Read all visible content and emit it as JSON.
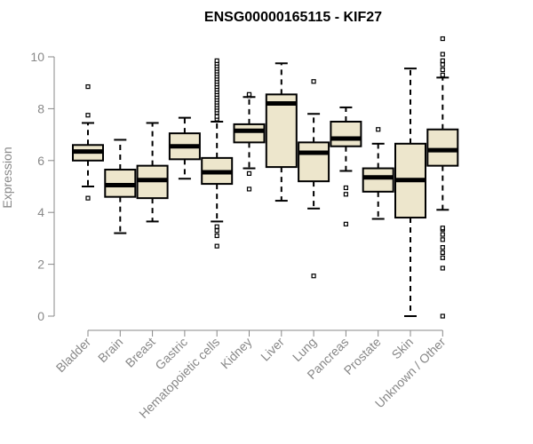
{
  "chart_data": {
    "type": "box",
    "title": "ENSG00000165115 - KIF27",
    "ylabel": "Expression",
    "xlabel": "",
    "ylim": [
      0,
      10
    ],
    "yticks": [
      0,
      2,
      4,
      6,
      8,
      10
    ],
    "colors": {
      "box_fill": "#ede6cc",
      "box_stroke": "#000000",
      "median": "#000000",
      "axis": "#888888",
      "text": "#888888"
    },
    "categories": [
      "Bladder",
      "Brain",
      "Breast",
      "Gastric",
      "Hematopoietic cells",
      "Kidney",
      "Liver",
      "Lung",
      "Pancreas",
      "Prostate",
      "Skin",
      "Unknown / Other"
    ],
    "boxes": [
      {
        "min": 5.0,
        "q1": 6.0,
        "median": 6.35,
        "q3": 6.6,
        "max": 7.45,
        "outliers": [
          4.55,
          7.75,
          8.85
        ]
      },
      {
        "min": 3.2,
        "q1": 4.6,
        "median": 5.05,
        "q3": 5.65,
        "max": 6.8,
        "outliers": []
      },
      {
        "min": 3.65,
        "q1": 4.55,
        "median": 5.25,
        "q3": 5.8,
        "max": 7.45,
        "outliers": []
      },
      {
        "min": 5.3,
        "q1": 6.05,
        "median": 6.55,
        "q3": 7.05,
        "max": 7.65,
        "outliers": []
      },
      {
        "min": 3.65,
        "q1": 5.1,
        "median": 5.55,
        "q3": 6.1,
        "max": 7.5,
        "outliers": [
          2.7,
          3.1,
          3.3,
          3.45,
          7.6,
          7.7,
          7.85,
          7.95,
          8.05,
          8.15,
          8.25,
          8.35,
          8.45,
          8.55,
          8.65,
          8.75,
          8.85,
          8.95,
          9.05,
          9.15,
          9.25,
          9.35,
          9.45,
          9.55,
          9.65,
          9.75,
          9.85
        ]
      },
      {
        "min": 5.7,
        "q1": 6.7,
        "median": 7.15,
        "q3": 7.4,
        "max": 8.45,
        "outliers": [
          4.9,
          5.5,
          8.5,
          8.55
        ]
      },
      {
        "min": 4.45,
        "q1": 5.75,
        "median": 8.2,
        "q3": 8.55,
        "max": 9.75,
        "outliers": []
      },
      {
        "min": 4.15,
        "q1": 5.2,
        "median": 6.3,
        "q3": 6.7,
        "max": 7.8,
        "outliers": [
          1.55,
          9.05
        ]
      },
      {
        "min": 5.6,
        "q1": 6.55,
        "median": 6.85,
        "q3": 7.5,
        "max": 8.05,
        "outliers": [
          3.55,
          4.7,
          4.95
        ]
      },
      {
        "min": 3.75,
        "q1": 4.8,
        "median": 5.35,
        "q3": 5.7,
        "max": 6.65,
        "outliers": [
          7.2
        ]
      },
      {
        "min": 0.0,
        "q1": 3.8,
        "median": 5.25,
        "q3": 6.65,
        "max": 9.55,
        "outliers": []
      },
      {
        "min": 4.1,
        "q1": 5.8,
        "median": 6.4,
        "q3": 7.2,
        "max": 9.2,
        "outliers": [
          0.0,
          1.85,
          2.25,
          2.45,
          2.65,
          2.95,
          3.15,
          3.35,
          3.4,
          9.3,
          9.5,
          9.7,
          9.85,
          10.1,
          10.7
        ]
      }
    ]
  }
}
